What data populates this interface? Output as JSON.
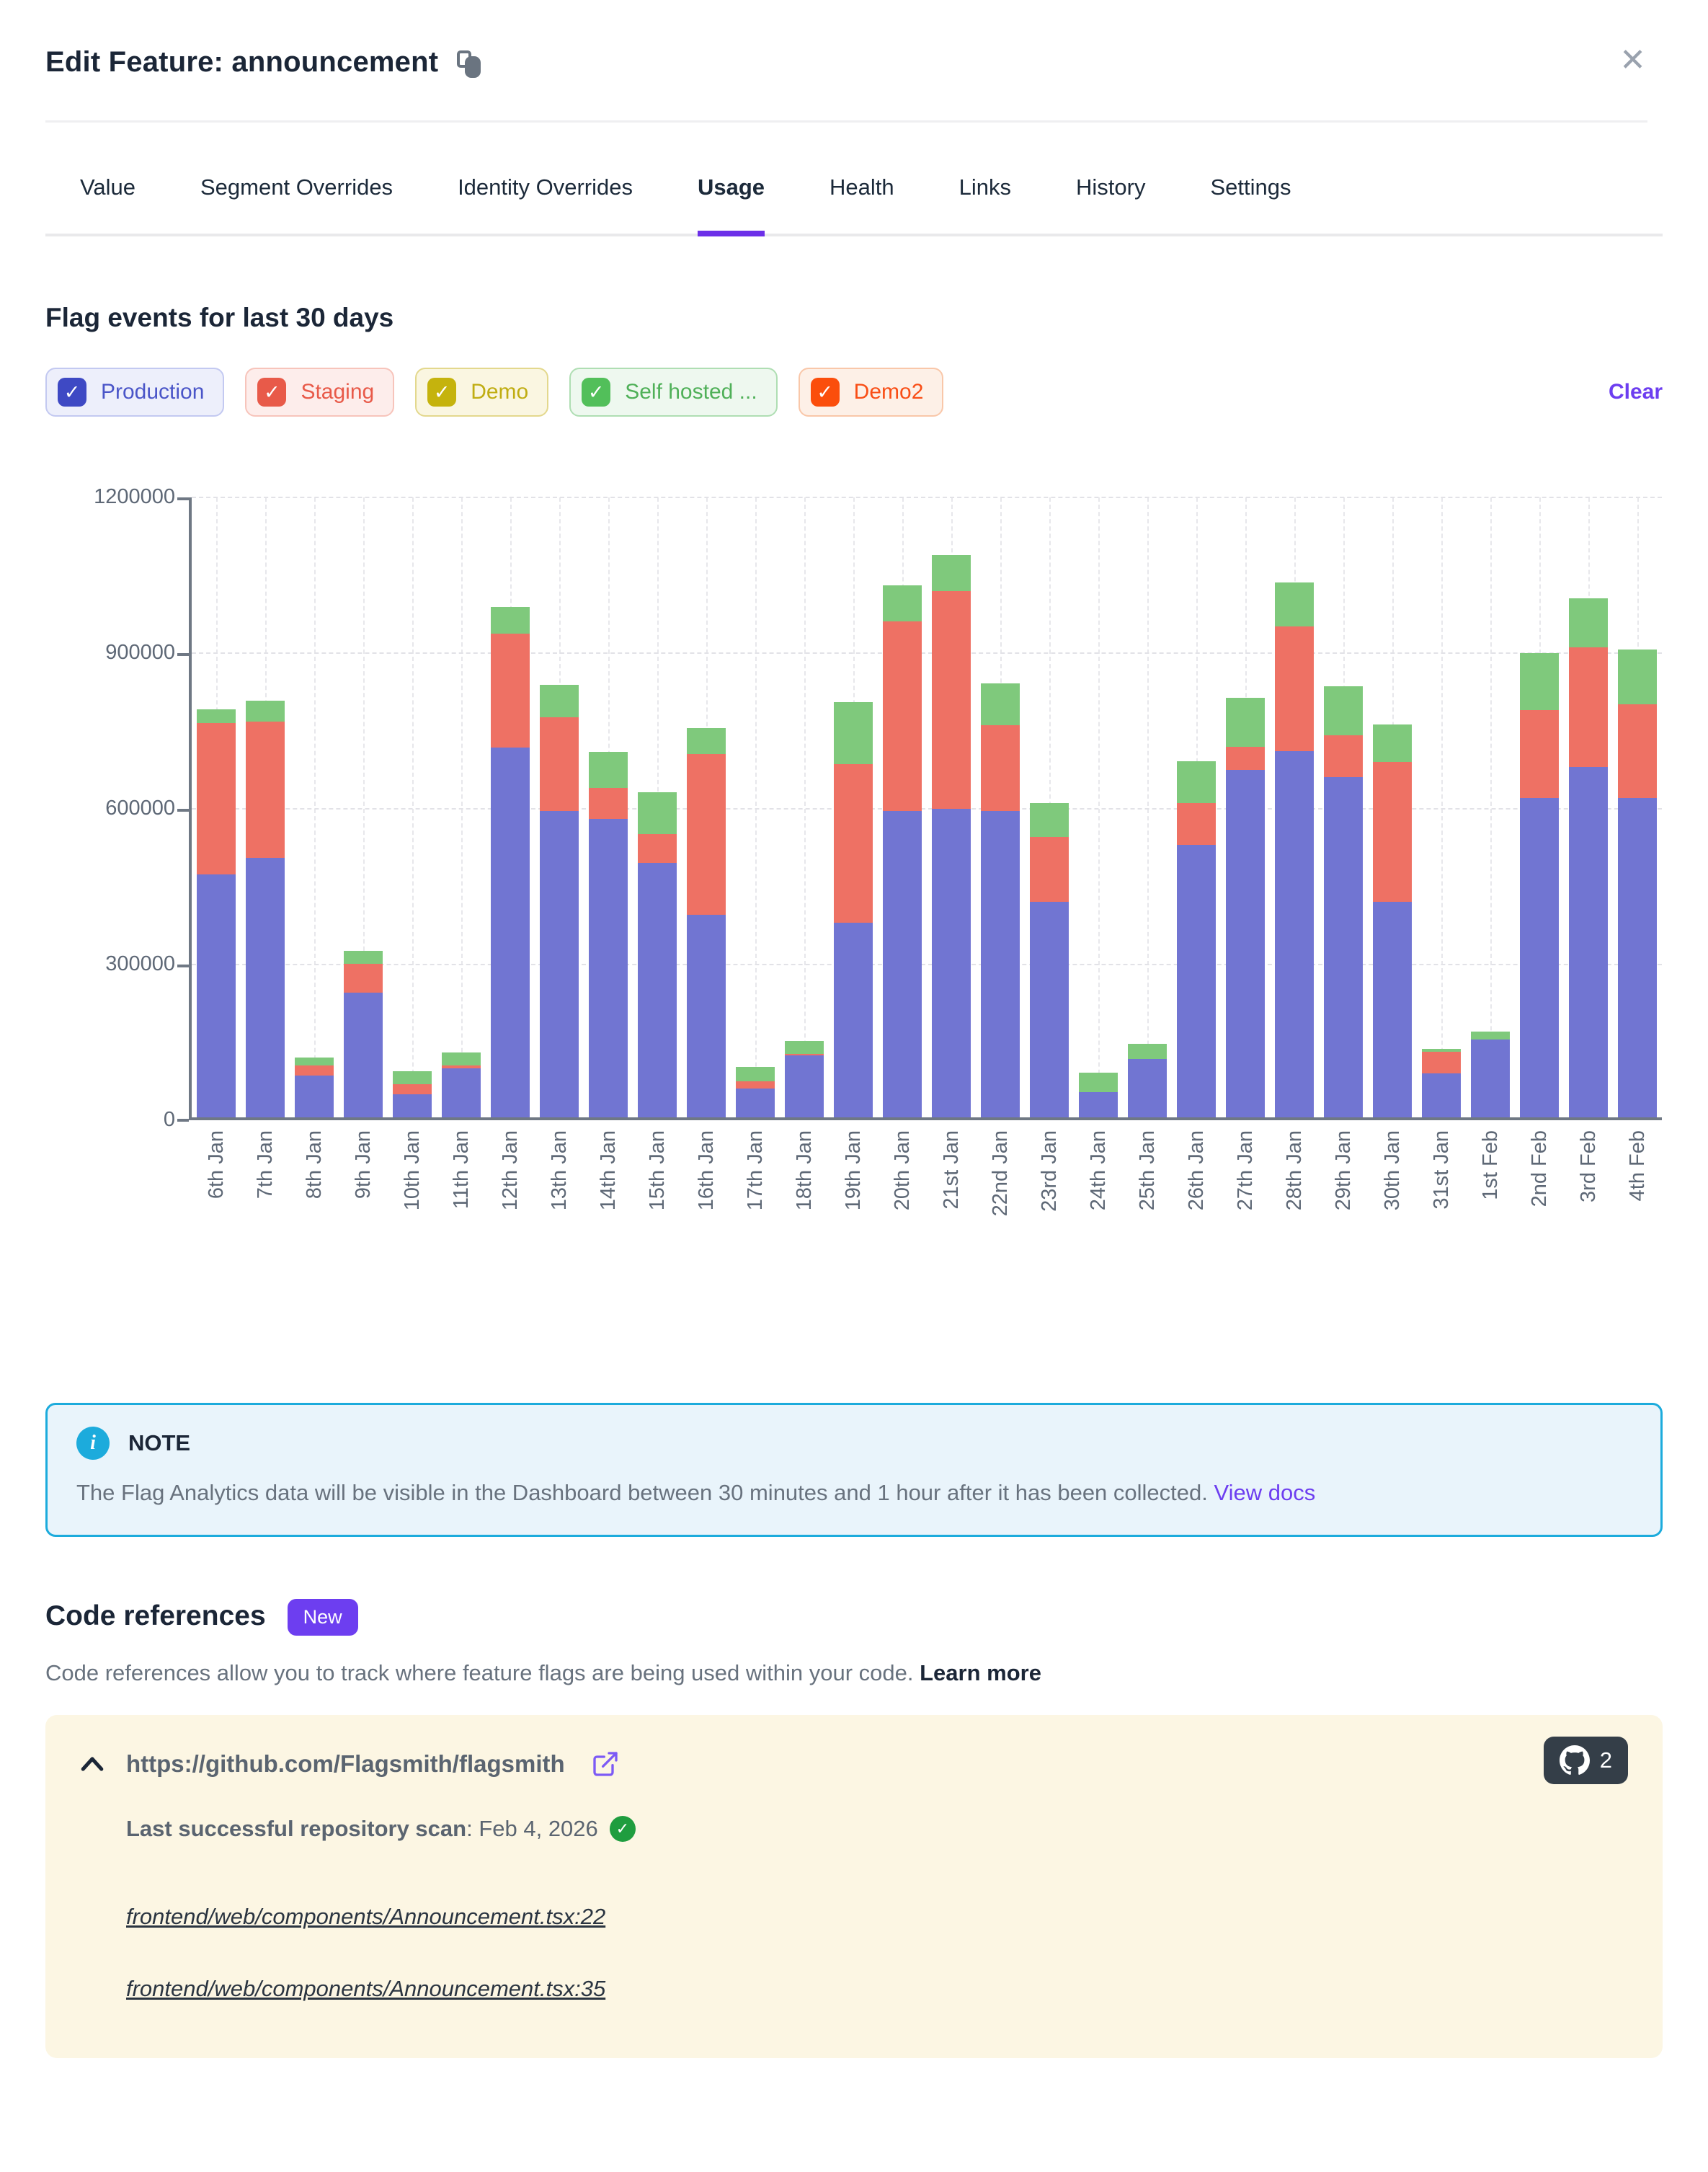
{
  "header": {
    "title": "Edit Feature: announcement"
  },
  "tabs": {
    "items": [
      {
        "label": "Value",
        "active": false
      },
      {
        "label": "Segment Overrides",
        "active": false
      },
      {
        "label": "Identity Overrides",
        "active": false
      },
      {
        "label": "Usage",
        "active": true
      },
      {
        "label": "Health",
        "active": false
      },
      {
        "label": "Links",
        "active": false
      },
      {
        "label": "History",
        "active": false
      },
      {
        "label": "Settings",
        "active": false
      }
    ]
  },
  "usage": {
    "heading": "Flag events for last 30 days",
    "clear_label": "Clear",
    "environments": [
      {
        "label": "Production",
        "checked": true,
        "box": "#3E49C4",
        "bg": "#EDEFFB",
        "border": "#C3C9F1",
        "text": "#4A55C8"
      },
      {
        "label": "Staging",
        "checked": true,
        "box": "#E85A49",
        "bg": "#FDEDEB",
        "border": "#F7C4BB",
        "text": "#E85A49"
      },
      {
        "label": "Demo",
        "checked": true,
        "box": "#C5B30D",
        "bg": "#FAF6E1",
        "border": "#E3D88D",
        "text": "#C0AD12"
      },
      {
        "label": "Self hosted ...",
        "checked": true,
        "box": "#52BF5A",
        "bg": "#EEF8EF",
        "border": "#AFDEB3",
        "text": "#4FB058"
      },
      {
        "label": "Demo2",
        "checked": true,
        "box": "#FB4E0C",
        "bg": "#FDF0E7",
        "border": "#F9C7A9",
        "text": "#F94E16"
      }
    ]
  },
  "chart_data": {
    "type": "bar",
    "stacked": true,
    "title": "Flag events for last 30 days",
    "grid": "dashed",
    "ylim": [
      0,
      1200000
    ],
    "yticks": [
      0,
      300000,
      600000,
      900000,
      1200000
    ],
    "categories": [
      "6th Jan",
      "7th Jan",
      "8th Jan",
      "9th Jan",
      "10th Jan",
      "11th Jan",
      "12th Jan",
      "13th Jan",
      "14th Jan",
      "15th Jan",
      "16th Jan",
      "17th Jan",
      "18th Jan",
      "19th Jan",
      "20th Jan",
      "21st Jan",
      "22nd Jan",
      "23rd Jan",
      "24th Jan",
      "25th Jan",
      "26th Jan",
      "27th Jan",
      "28th Jan",
      "29th Jan",
      "30th Jan",
      "31st Jan",
      "1st Feb",
      "2nd Feb",
      "3rd Feb",
      "4th Feb"
    ],
    "series": [
      {
        "name": "Production",
        "color": "#7175D2",
        "values": [
          468000,
          500000,
          80000,
          240000,
          45000,
          95000,
          713000,
          590000,
          575000,
          490000,
          390000,
          55000,
          120000,
          375000,
          590000,
          595000,
          590000,
          415000,
          48000,
          113000,
          525000,
          670000,
          705000,
          655000,
          415000,
          85000,
          150000,
          615000,
          675000,
          615000
        ]
      },
      {
        "name": "Staging",
        "color": "#EE7164",
        "values": [
          292000,
          262000,
          20000,
          55000,
          20000,
          5000,
          220000,
          180000,
          60000,
          55000,
          310000,
          14000,
          2000,
          305000,
          365000,
          420000,
          165000,
          125000,
          0,
          0,
          80000,
          45000,
          240000,
          80000,
          270000,
          42000,
          0,
          170000,
          230000,
          180000
        ]
      },
      {
        "name": "Self hosted",
        "color": "#7FC97C",
        "values": [
          27000,
          40000,
          15000,
          25000,
          25000,
          25000,
          52000,
          63000,
          70000,
          80000,
          50000,
          28000,
          25000,
          120000,
          70000,
          70000,
          80000,
          65000,
          37000,
          29000,
          80000,
          95000,
          85000,
          95000,
          72000,
          6000,
          15000,
          110000,
          95000,
          105000
        ]
      }
    ]
  },
  "note": {
    "title": "NOTE",
    "body": "The Flag Analytics data will be visible in the Dashboard between 30 minutes and 1 hour after it has been collected. ",
    "link_label": "View docs"
  },
  "code_references": {
    "heading": "Code references",
    "badge": "New",
    "description": "Code references allow you to track where feature flags are being used within your code. ",
    "learn_more": "Learn more",
    "repo": {
      "url": "https://github.com/Flagsmith/flagsmith",
      "count": "2",
      "scan_label": "Last successful repository scan",
      "scan_date": ": Feb 4, 2026",
      "files": [
        "frontend/web/components/Announcement.tsx:22",
        "frontend/web/components/Announcement.tsx:35"
      ]
    }
  }
}
